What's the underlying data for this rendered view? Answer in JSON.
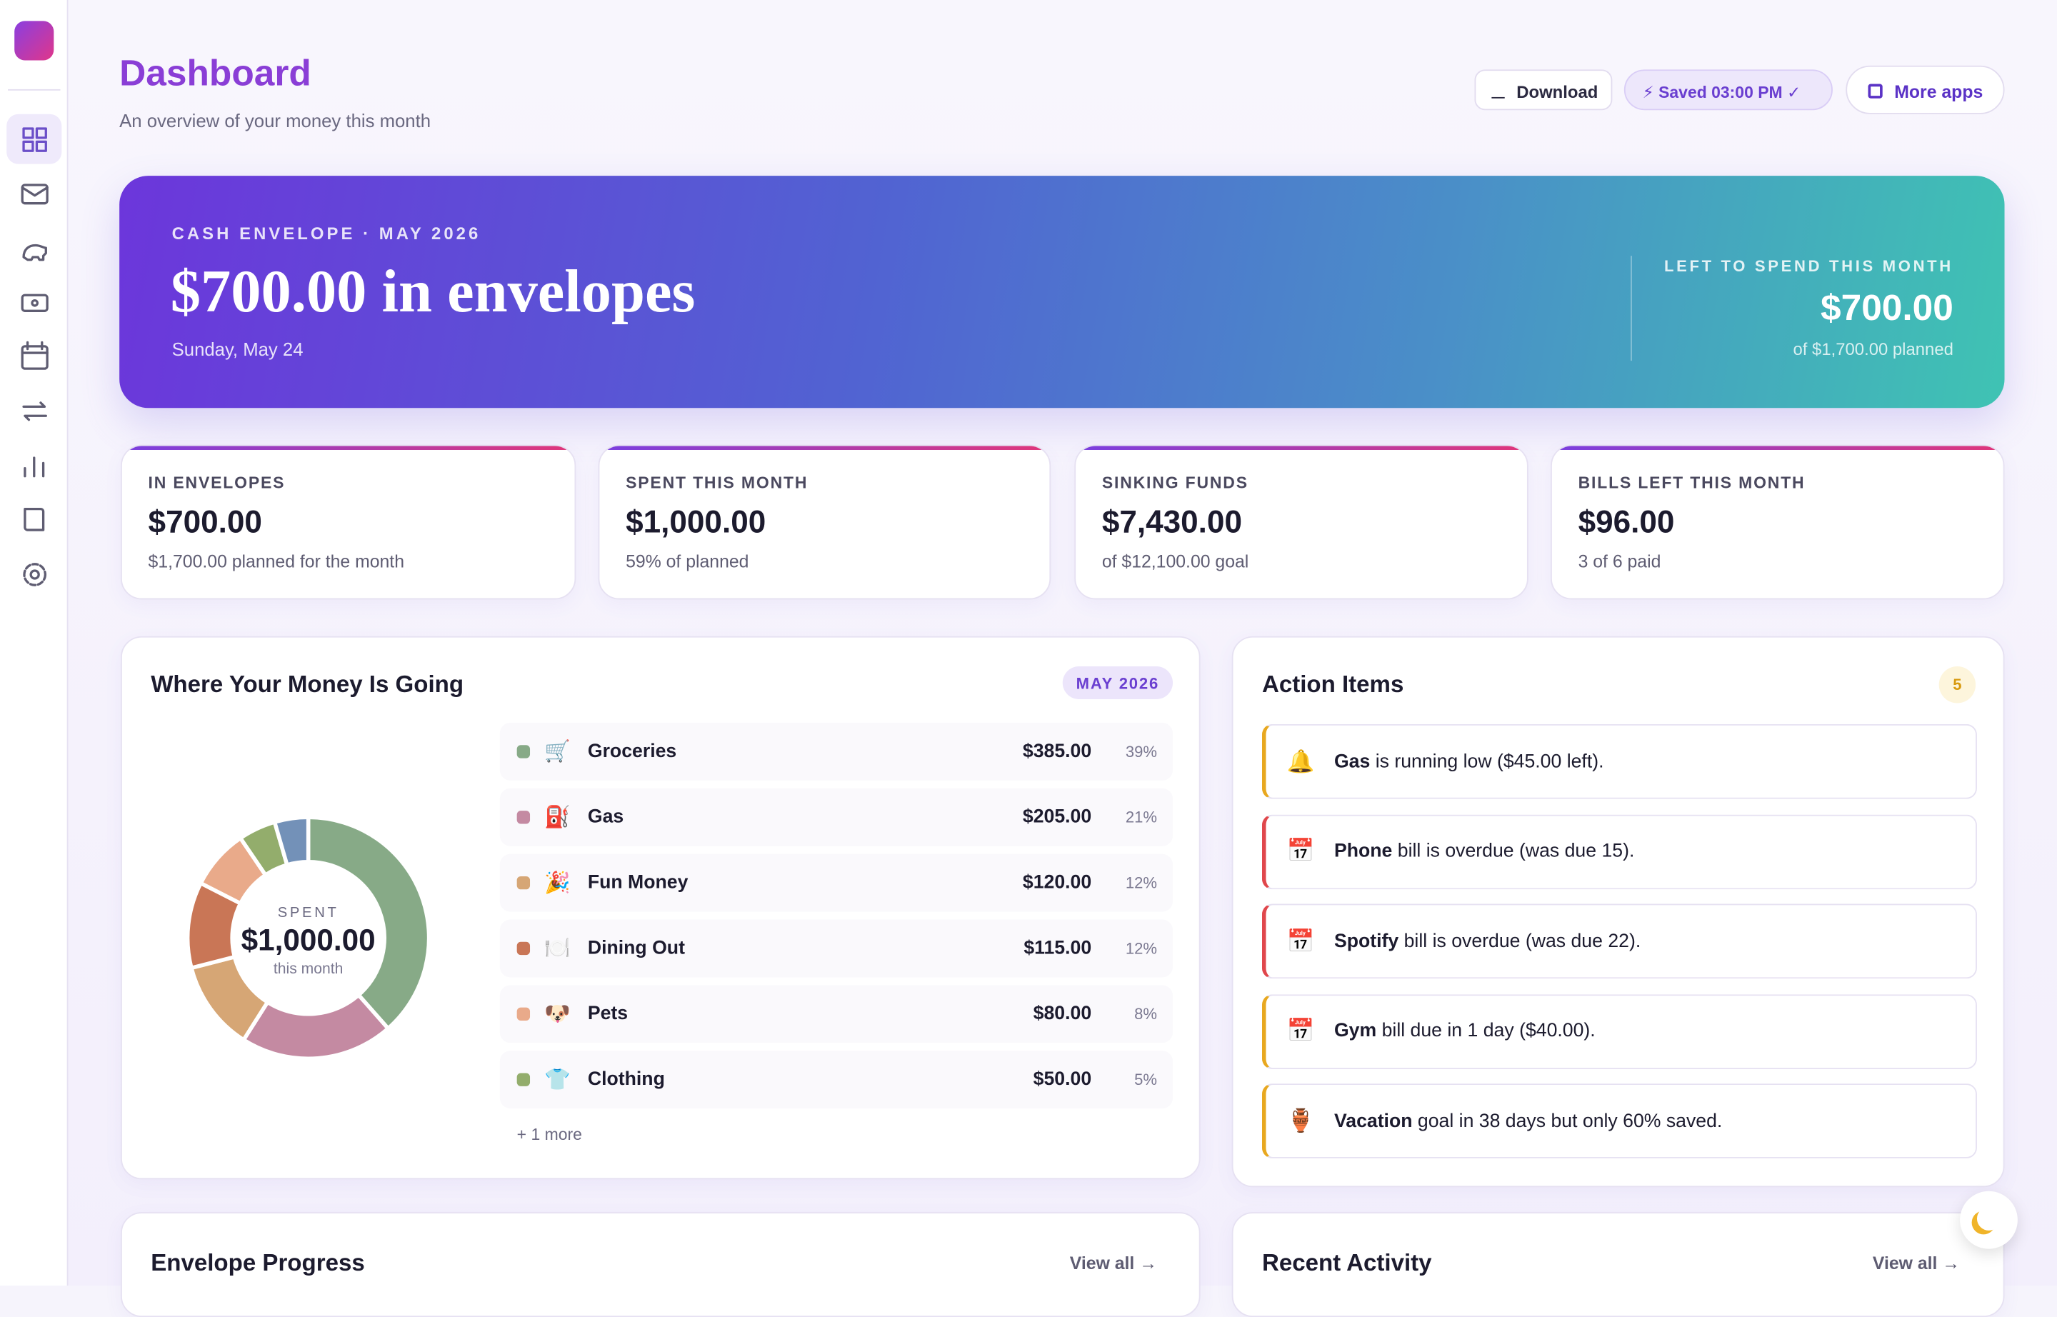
{
  "header": {
    "title": "Dashboard",
    "subtitle": "An overview of your money this month",
    "download": "Download",
    "saved": "⚡ Saved 03:00 PM ✓",
    "more_apps": "More apps"
  },
  "hero": {
    "eyebrow": "CASH ENVELOPE · MAY 2026",
    "headline": "$700.00 in envelopes",
    "date": "Sunday, May 24",
    "side_label": "LEFT TO SPEND THIS MONTH",
    "side_value": "$700.00",
    "side_note": "of $1,700.00 planned"
  },
  "stats": [
    {
      "label": "IN ENVELOPES",
      "value": "$700.00",
      "note": "$1,700.00 planned for the month"
    },
    {
      "label": "SPENT THIS MONTH",
      "value": "$1,000.00",
      "note": "59% of planned"
    },
    {
      "label": "SINKING FUNDS",
      "value": "$7,430.00",
      "note": "of $12,100.00 goal"
    },
    {
      "label": "BILLS LEFT THIS MONTH",
      "value": "$96.00",
      "note": "3 of 6 paid"
    }
  ],
  "spending": {
    "title": "Where Your Money Is Going",
    "badge": "MAY 2026",
    "center_label": "SPENT",
    "center_value": "$1,000.00",
    "center_note": "this month",
    "more": "+ 1 more",
    "chart": {
      "type": "donut",
      "categories": [
        "Groceries",
        "Gas",
        "Fun Money",
        "Dining Out",
        "Pets",
        "Clothing",
        null
      ],
      "icons": [
        "🛒",
        "⛽",
        "🎉",
        "🍽️",
        "🐶",
        "👕",
        null
      ],
      "values": [
        385,
        205,
        120,
        115,
        80,
        50,
        45
      ],
      "value_labels": [
        "$385.00",
        "$205.00",
        "$120.00",
        "$115.00",
        "$80.00",
        "$50.00",
        null
      ],
      "shares": [
        "39%",
        "21%",
        "12%",
        "12%",
        "8%",
        "5%",
        null
      ],
      "colors": [
        "#87aa87",
        "#c48aa2",
        "#d6a675",
        "#c97656",
        "#e9aa8a",
        "#93ad6c",
        "#7391b8"
      ]
    }
  },
  "actions": {
    "title": "Action Items",
    "count": "5",
    "items": [
      {
        "icon": "🔔",
        "subject": "Gas",
        "text": "is running low ($45.00 left).",
        "level": "warn"
      },
      {
        "icon": "📅",
        "subject": "Phone",
        "text": "bill is overdue (was due 15).",
        "level": "alert"
      },
      {
        "icon": "📅",
        "subject": "Spotify",
        "text": "bill is overdue (was due 22).",
        "level": "alert"
      },
      {
        "icon": "📅",
        "subject": "Gym",
        "text": "bill due in 1 day ($40.00).",
        "level": "warn"
      },
      {
        "icon": "🏺",
        "subject": "Vacation",
        "text": "goal in 38 days but only 60% saved.",
        "level": "warn"
      }
    ]
  },
  "progress": {
    "title": "Envelope Progress",
    "link": "View all →"
  },
  "activity": {
    "title": "Recent Activity",
    "link": "View all →"
  }
}
